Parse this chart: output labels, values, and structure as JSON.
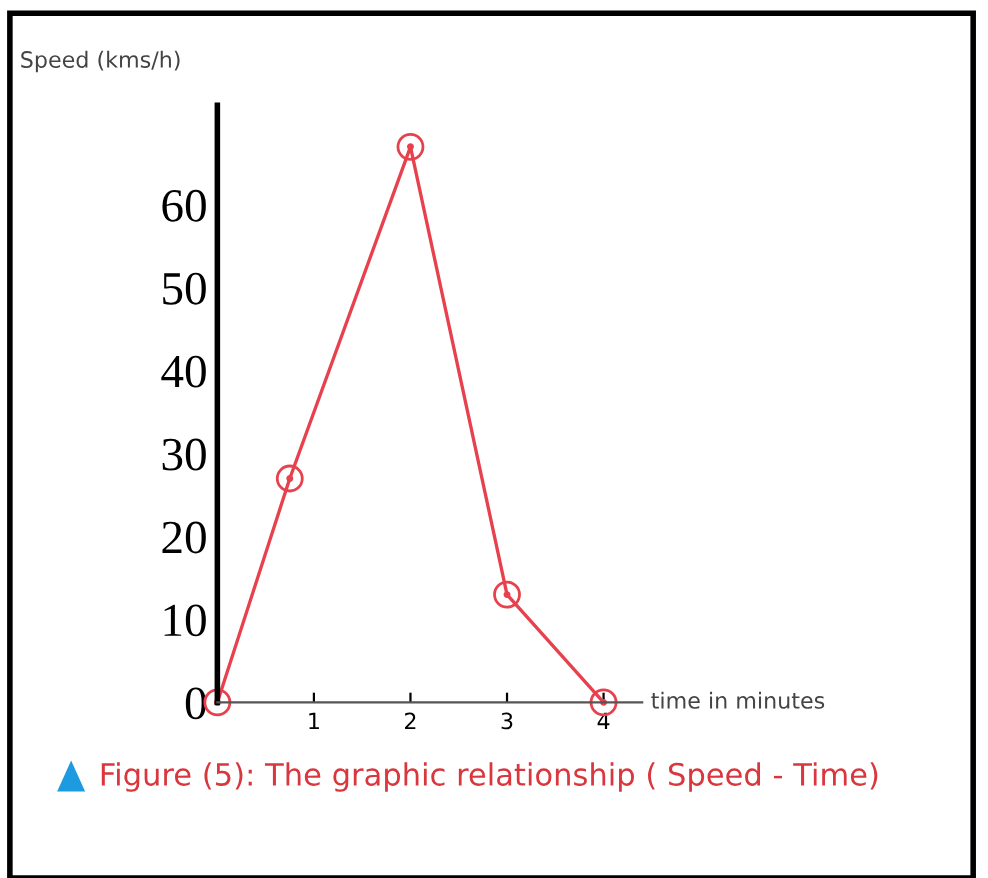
{
  "chart_data": {
    "type": "line",
    "ylabel": "Speed (kms/h)",
    "xlabel": "time in minutes",
    "x": [
      0,
      0.75,
      2,
      3,
      4
    ],
    "series": [
      {
        "color": "#e8414e",
        "values": [
          0,
          27,
          67,
          13,
          0
        ]
      }
    ],
    "xlim": [
      0,
      4.4
    ],
    "xticks": [
      1,
      2,
      3,
      4
    ],
    "ylim": [
      0,
      72
    ],
    "yticks": [
      0,
      10,
      20,
      30,
      40,
      50,
      60
    ],
    "marker": "circle",
    "line_style": "solid",
    "grid": false,
    "legend": false,
    "annotations": [
      "Figure (5): The graphic relationship ( Speed - Time)"
    ]
  }
}
